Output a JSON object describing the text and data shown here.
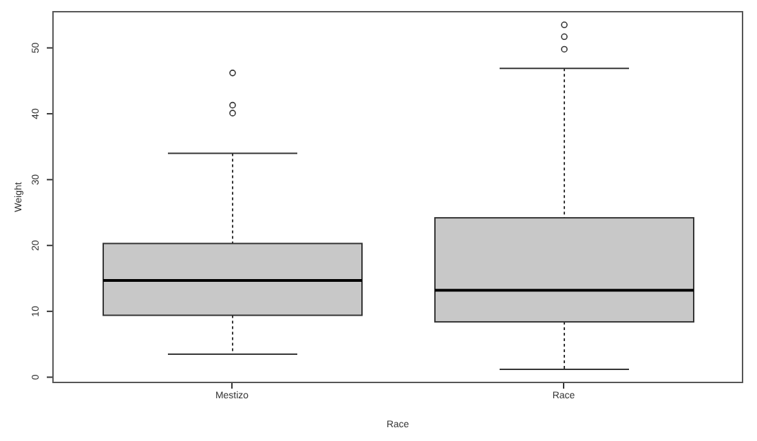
{
  "chart_data": {
    "type": "box",
    "xlabel": "Race",
    "ylabel": "Weight",
    "categories": [
      "Mestizo",
      "Race"
    ],
    "color": "#c8c8c8",
    "boxes": [
      {
        "low": 3.5,
        "q1": 9.4,
        "median": 14.7,
        "q3": 20.3,
        "high": 34.0,
        "outliers": [
          46.2,
          41.3,
          40.1
        ]
      },
      {
        "low": 1.2,
        "q1": 8.4,
        "median": 13.2,
        "q3": 24.2,
        "high": 46.9,
        "outliers": [
          53.5,
          51.7,
          49.8
        ]
      }
    ],
    "ylim": [
      -0.9,
      55.6
    ],
    "yticks": [
      0,
      10,
      20,
      30,
      40,
      50
    ],
    "grid": false
  }
}
